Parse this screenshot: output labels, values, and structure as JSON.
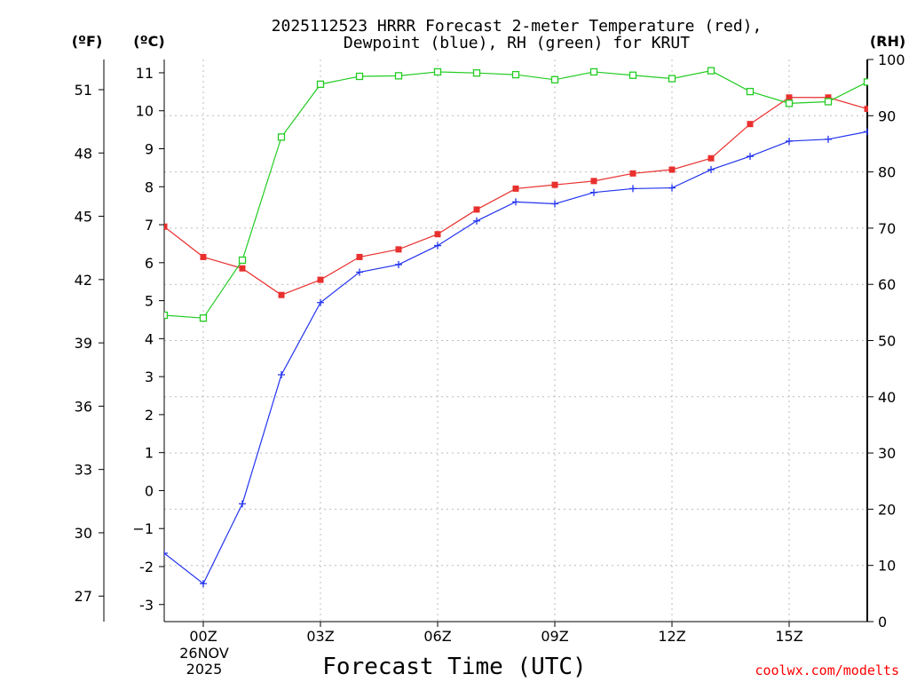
{
  "chart_data": {
    "type": "line",
    "title_line1": "2025112523 HRRR Forecast 2-meter Temperature (red),",
    "title_line2": "Dewpoint (blue), RH (green) for KRUT",
    "xlabel": "Forecast Time (UTC)",
    "credit": "coolwx.com/modelts",
    "date_label_line1": "26NOV",
    "date_label_line2": "2025",
    "units": {
      "fahrenheit": "(ºF)",
      "celsius": "(ºC)",
      "rh": "(RH)"
    },
    "x": [
      -1,
      0,
      1,
      2,
      3,
      4,
      5,
      6,
      7,
      8,
      9,
      10,
      11,
      12,
      13,
      14,
      15,
      16,
      17
    ],
    "x_ticks": [
      {
        "value": 0,
        "label": "00Z"
      },
      {
        "value": 3,
        "label": "03Z"
      },
      {
        "value": 6,
        "label": "06Z"
      },
      {
        "value": 9,
        "label": "09Z"
      },
      {
        "value": 12,
        "label": "12Z"
      },
      {
        "value": 15,
        "label": "15Z"
      }
    ],
    "xlim": [
      -1,
      17
    ],
    "ylim_c": [
      -3.45,
      11.35
    ],
    "ylim_rh": [
      0,
      100
    ],
    "y_ticks_c": [
      "-3",
      "-2",
      "−1",
      "0",
      "1",
      "2",
      "3",
      "4",
      "5",
      "6",
      "7",
      "8",
      "9",
      "10",
      "11"
    ],
    "y_ticks_f": [
      "27",
      "30",
      "33",
      "36",
      "39",
      "42",
      "45",
      "48",
      "51"
    ],
    "y_ticks_rh": [
      "0",
      "10",
      "20",
      "30",
      "40",
      "50",
      "60",
      "70",
      "80",
      "90",
      "100"
    ],
    "series": [
      {
        "name": "Temperature",
        "units": "C",
        "color": "#e8302e",
        "marker": "filled-square",
        "values": [
          6.95,
          6.15,
          5.85,
          5.15,
          5.55,
          6.15,
          6.35,
          6.75,
          7.4,
          7.95,
          8.05,
          8.15,
          8.35,
          8.45,
          8.75,
          9.65,
          10.35,
          10.35,
          10.05
        ]
      },
      {
        "name": "Dewpoint",
        "units": "C",
        "color": "#2233ee",
        "marker": "plus",
        "values": [
          -1.65,
          -2.45,
          -0.35,
          3.05,
          4.95,
          5.75,
          5.95,
          6.45,
          7.1,
          7.6,
          7.55,
          7.85,
          7.95,
          7.97,
          8.45,
          8.8,
          9.2,
          9.25,
          9.45
        ]
      },
      {
        "name": "RH",
        "units": "%",
        "color": "#22cc22",
        "marker": "open-square",
        "values": [
          54.5,
          54,
          64.3,
          86.2,
          95.6,
          97,
          97.1,
          97.8,
          97.6,
          97.3,
          96.4,
          97.8,
          97.2,
          96.6,
          98,
          94.3,
          92.2,
          92.5,
          96
        ]
      }
    ]
  }
}
